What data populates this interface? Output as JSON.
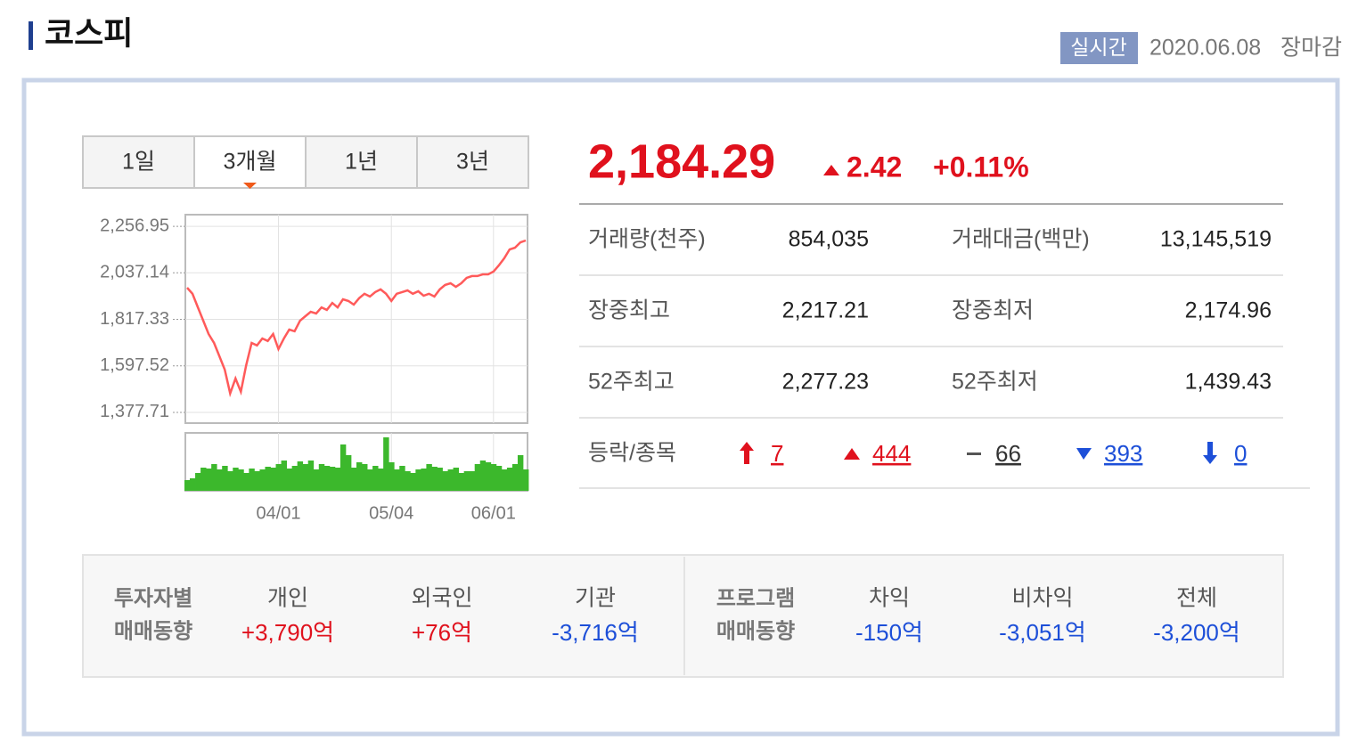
{
  "header": {
    "title": "코스피",
    "badge": "실시간",
    "date": "2020.06.08",
    "status": "장마감"
  },
  "tabs": [
    "1일",
    "3개월",
    "1년",
    "3년"
  ],
  "active_tab": 1,
  "chart_data": {
    "type": "line",
    "color": "#ff5a5a",
    "categories": [
      null,
      null,
      null,
      null,
      null,
      null,
      null,
      null,
      null,
      null,
      null,
      null,
      null,
      null,
      null,
      null,
      null,
      "04/01",
      null,
      null,
      null,
      null,
      null,
      null,
      null,
      null,
      null,
      null,
      null,
      null,
      null,
      null,
      null,
      null,
      null,
      null,
      null,
      null,
      "05/04",
      null,
      null,
      null,
      null,
      null,
      null,
      null,
      null,
      null,
      null,
      null,
      null,
      null,
      null,
      null,
      null,
      null,
      null,
      "06/01",
      null,
      null,
      null,
      null,
      null,
      null
    ],
    "values": [
      1967,
      1938,
      1874,
      1811,
      1748,
      1706,
      1643,
      1580,
      1467,
      1538,
      1475,
      1601,
      1706,
      1694,
      1727,
      1715,
      1748,
      1677,
      1727,
      1769,
      1761,
      1811,
      1832,
      1853,
      1845,
      1874,
      1862,
      1895,
      1874,
      1912,
      1904,
      1887,
      1917,
      1938,
      1925,
      1946,
      1959,
      1938,
      1904,
      1938,
      1946,
      1954,
      1938,
      1950,
      1929,
      1938,
      1925,
      1959,
      1980,
      1988,
      1971,
      1988,
      2013,
      2022,
      2022,
      2030,
      2030,
      2043,
      2072,
      2106,
      2148,
      2156,
      2181,
      2190
    ],
    "ylim": [
      1327,
      2312
    ],
    "yticks": [
      {
        "value": 2256.95,
        "label": "2,256.95"
      },
      {
        "value": 2037.14,
        "label": "2,037.14"
      },
      {
        "value": 1817.33,
        "label": "1,817.33"
      },
      {
        "value": 1597.52,
        "label": "1,597.52"
      },
      {
        "value": 1377.71,
        "label": "1,377.71"
      }
    ],
    "grid": true,
    "volume": {
      "color": "#3cb82c",
      "ylim": [
        0,
        65
      ],
      "values": [
        12,
        14,
        20,
        26,
        25,
        30,
        24,
        28,
        22,
        26,
        24,
        20,
        25,
        22,
        24,
        27,
        26,
        30,
        34,
        25,
        28,
        33,
        30,
        34,
        24,
        30,
        28,
        27,
        26,
        52,
        40,
        26,
        32,
        30,
        24,
        28,
        25,
        60,
        32,
        24,
        28,
        22,
        20,
        24,
        25,
        30,
        27,
        26,
        22,
        24,
        26,
        20,
        22,
        22,
        30,
        34,
        32,
        30,
        28,
        24,
        26,
        30,
        40,
        24
      ]
    }
  },
  "quote": {
    "price": "2,184.29",
    "change": "2.42",
    "change_pct": "+0.11%"
  },
  "stats": [
    [
      "거래량(천주)",
      "854,035",
      "거래대금(백만)",
      "13,145,519"
    ],
    [
      "장중최고",
      "2,217.21",
      "장중최저",
      "2,174.96"
    ],
    [
      "52주최고",
      "2,277.23",
      "52주최저",
      "1,439.43"
    ]
  ],
  "breadth": {
    "label": "등락/종목",
    "upper_limit": "7",
    "up": "444",
    "flat": "66",
    "down": "393",
    "lower_limit": "0"
  },
  "investors": {
    "label": [
      "투자자별",
      "매매동향"
    ],
    "items": [
      {
        "name": "개인",
        "value": "+3,790억"
      },
      {
        "name": "외국인",
        "value": "+76억"
      },
      {
        "name": "기관",
        "value": "-3,716억"
      }
    ]
  },
  "program": {
    "label": [
      "프로그램",
      "매매동향"
    ],
    "items": [
      {
        "name": "차익",
        "value": "-150억"
      },
      {
        "name": "비차익",
        "value": "-3,051억"
      },
      {
        "name": "전체",
        "value": "-3,200억"
      }
    ]
  }
}
